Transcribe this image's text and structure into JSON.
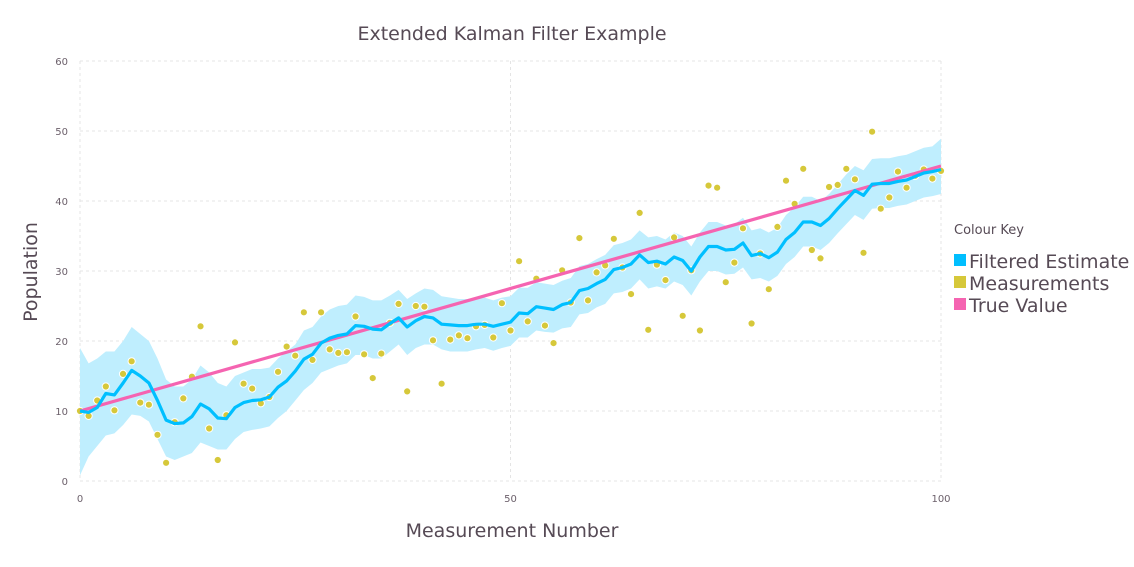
{
  "colors": {
    "filtered": "#00bfff",
    "band": "#bfeefe",
    "measurement": "#d6c83a",
    "true_value": "#f564b1",
    "grid": "#e4e4e4",
    "text": "#564a55"
  },
  "chart_data": {
    "type": "line",
    "title": "Extended Kalman Filter Example",
    "xlabel": "Measurement Number",
    "ylabel": "Population",
    "xlim": [
      0,
      100
    ],
    "ylim": [
      0,
      60
    ],
    "xticks": [
      0,
      50,
      100
    ],
    "yticks": [
      0,
      10,
      20,
      30,
      40,
      50,
      60
    ],
    "grid": true,
    "legend": {
      "title": "Colour Key",
      "placement": "right",
      "entries": [
        "Filtered Estimate",
        "Measurements",
        "True Value"
      ]
    },
    "series": [
      {
        "name": "True Value",
        "type": "line",
        "x": [
          0,
          100
        ],
        "y": [
          10,
          45
        ]
      },
      {
        "name": "Measurements",
        "type": "scatter",
        "x": [
          0,
          1,
          2,
          3,
          4,
          5,
          6,
          7,
          8,
          9,
          10,
          11,
          12,
          13,
          14,
          15,
          16,
          17,
          18,
          19,
          20,
          21,
          22,
          23,
          24,
          25,
          26,
          27,
          28,
          29,
          30,
          31,
          32,
          33,
          34,
          35,
          36,
          37,
          38,
          39,
          40,
          41,
          42,
          43,
          44,
          45,
          46,
          47,
          48,
          49,
          50,
          51,
          52,
          53,
          54,
          55,
          56,
          57,
          58,
          59,
          60,
          61,
          62,
          63,
          64,
          65,
          66,
          67,
          68,
          69,
          70,
          71,
          72,
          73,
          74,
          75,
          76,
          77,
          78,
          79,
          80,
          81,
          82,
          83,
          84,
          85,
          86,
          87,
          88,
          89,
          90,
          91,
          92,
          93,
          94,
          95,
          96,
          97,
          98,
          99,
          100
        ],
        "y": [
          10.0,
          9.3,
          11.5,
          13.5,
          10.1,
          15.3,
          17.1,
          11.2,
          10.9,
          6.6,
          2.6,
          8.4,
          11.8,
          14.9,
          22.1,
          7.5,
          3.0,
          9.4,
          19.8,
          13.9,
          13.2,
          11.1,
          12.0,
          15.6,
          19.2,
          17.9,
          24.1,
          17.3,
          24.1,
          18.8,
          18.3,
          18.4,
          23.5,
          18.1,
          14.7,
          18.2,
          22.6,
          25.3,
          12.8,
          25.0,
          24.9,
          20.1,
          13.9,
          20.2,
          20.8,
          20.4,
          22.1,
          22.3,
          20.5,
          25.4,
          21.5,
          31.4,
          22.8,
          28.9,
          22.2,
          19.7,
          30.1,
          25.5,
          34.7,
          25.8,
          29.8,
          30.8,
          34.6,
          30.5,
          26.7,
          38.3,
          21.6,
          30.9,
          28.7,
          34.8,
          23.6,
          30.1,
          21.5,
          42.2,
          41.9,
          28.4,
          31.2,
          36.1,
          22.5,
          32.5,
          27.4,
          36.3,
          42.9,
          39.6,
          44.6,
          33.0,
          31.8,
          42.0,
          42.3,
          44.6,
          43.1,
          32.6,
          49.9,
          38.9,
          40.5,
          44.2,
          41.9,
          43.6,
          44.5,
          43.2,
          44.3
        ]
      },
      {
        "name": "Filtered Estimate",
        "type": "line",
        "x": [
          0,
          1,
          2,
          3,
          4,
          5,
          6,
          7,
          8,
          9,
          10,
          11,
          12,
          13,
          14,
          15,
          16,
          17,
          18,
          19,
          20,
          21,
          22,
          23,
          24,
          25,
          26,
          27,
          28,
          29,
          30,
          31,
          32,
          33,
          34,
          35,
          36,
          37,
          38,
          39,
          40,
          41,
          42,
          43,
          44,
          45,
          46,
          47,
          48,
          49,
          50,
          51,
          52,
          53,
          54,
          55,
          56,
          57,
          58,
          59,
          60,
          61,
          62,
          63,
          64,
          65,
          66,
          67,
          68,
          69,
          70,
          71,
          72,
          73,
          74,
          75,
          76,
          77,
          78,
          79,
          80,
          81,
          82,
          83,
          84,
          85,
          86,
          87,
          88,
          89,
          90,
          91,
          92,
          93,
          94,
          95,
          96,
          97,
          98,
          99,
          100
        ],
        "y": [
          10.0,
          9.8,
          10.5,
          12.5,
          12.3,
          14.0,
          15.8,
          15.0,
          14.0,
          11.5,
          8.7,
          8.2,
          8.3,
          9.2,
          11.0,
          10.3,
          9.0,
          8.9,
          10.5,
          11.2,
          11.5,
          11.6,
          12.0,
          13.4,
          14.3,
          15.7,
          17.4,
          18.1,
          19.7,
          20.4,
          20.8,
          21.0,
          22.2,
          22.1,
          21.7,
          21.6,
          22.5,
          23.3,
          22.0,
          22.9,
          23.5,
          23.3,
          22.4,
          22.3,
          22.2,
          22.2,
          22.4,
          22.4,
          22.1,
          22.4,
          22.7,
          24.0,
          23.9,
          24.9,
          24.7,
          24.5,
          25.2,
          25.5,
          27.2,
          27.5,
          28.2,
          28.8,
          30.2,
          30.5,
          31.0,
          32.3,
          31.2,
          31.4,
          31.0,
          32.0,
          31.5,
          30.0,
          32.0,
          33.5,
          33.5,
          33.0,
          33.1,
          34.0,
          32.2,
          32.5,
          31.9,
          32.7,
          34.5,
          35.5,
          37.0,
          37.0,
          36.5,
          37.5,
          38.9,
          40.2,
          41.5,
          40.8,
          42.4,
          42.5,
          42.5,
          42.8,
          43.0,
          43.5,
          44.0,
          44.2,
          44.5
        ],
        "band_lower": [
          0.8,
          3.5,
          5.0,
          6.5,
          6.8,
          8.0,
          9.5,
          9.3,
          8.5,
          6.0,
          3.5,
          3.0,
          3.5,
          4.0,
          5.5,
          5.0,
          4.5,
          4.5,
          6.0,
          7.0,
          7.3,
          7.5,
          7.8,
          9.0,
          10.0,
          11.5,
          13.0,
          14.0,
          15.5,
          16.0,
          16.5,
          16.8,
          18.0,
          18.0,
          17.5,
          17.5,
          18.5,
          19.5,
          18.0,
          19.0,
          19.5,
          19.5,
          18.8,
          18.5,
          18.5,
          18.5,
          18.8,
          19.0,
          18.6,
          19.0,
          19.3,
          20.5,
          20.5,
          21.5,
          21.3,
          21.2,
          21.8,
          22.0,
          23.8,
          24.0,
          24.8,
          25.3,
          26.8,
          27.0,
          27.5,
          28.8,
          27.5,
          27.8,
          27.5,
          28.5,
          28.0,
          26.5,
          28.5,
          30.0,
          30.0,
          29.5,
          29.6,
          30.5,
          28.8,
          29.0,
          28.5,
          29.3,
          31.0,
          32.0,
          33.5,
          33.5,
          33.0,
          34.0,
          35.4,
          36.7,
          38.0,
          37.3,
          38.9,
          39.0,
          39.0,
          39.3,
          39.5,
          40.0,
          40.5,
          40.7,
          41.0
        ],
        "band_upper": [
          19.0,
          16.8,
          17.5,
          18.5,
          18.5,
          20.0,
          22.0,
          21.0,
          20.0,
          17.5,
          14.5,
          13.5,
          13.5,
          14.5,
          16.5,
          15.5,
          14.0,
          13.5,
          15.0,
          15.5,
          16.0,
          16.0,
          16.2,
          17.5,
          18.5,
          19.5,
          21.5,
          22.0,
          23.5,
          24.5,
          25.0,
          25.2,
          26.5,
          26.3,
          25.8,
          25.8,
          26.5,
          27.3,
          26.0,
          26.8,
          27.5,
          27.3,
          26.4,
          26.2,
          26.0,
          26.0,
          26.2,
          26.2,
          25.8,
          26.2,
          26.4,
          27.6,
          27.6,
          28.4,
          28.2,
          28.0,
          28.6,
          29.0,
          30.7,
          31.0,
          31.7,
          32.3,
          33.7,
          34.0,
          34.5,
          35.8,
          34.8,
          35.0,
          34.5,
          35.5,
          35.0,
          33.5,
          35.5,
          37.0,
          37.0,
          36.5,
          36.7,
          37.6,
          35.8,
          36.1,
          35.5,
          36.2,
          38.0,
          39.1,
          40.6,
          40.6,
          40.0,
          41.0,
          42.4,
          43.8,
          45.0,
          44.4,
          46.0,
          46.1,
          46.1,
          46.4,
          46.6,
          47.1,
          47.6,
          47.8,
          48.9
        ]
      }
    ]
  }
}
